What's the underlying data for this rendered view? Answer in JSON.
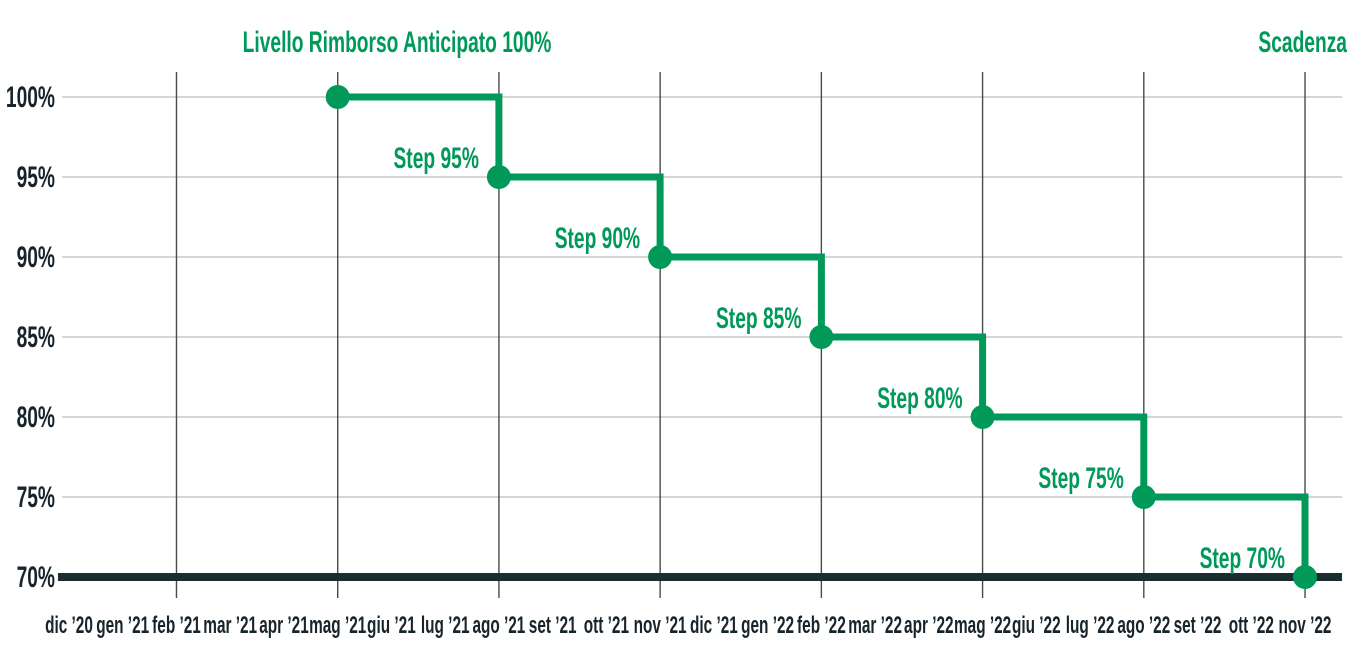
{
  "chart_data": {
    "type": "line",
    "line_style": "step-after",
    "title": "Livello Rimborso Anticipato 100%",
    "maturity_label": "Scadenza",
    "xlabel": "",
    "ylabel": "",
    "ylim": [
      70,
      100
    ],
    "grid": true,
    "legend_position": "none",
    "x_tick_labels": [
      "dic ’20",
      "gen ’21",
      "feb ’21",
      "mar ’21",
      "apr ’21",
      "mag ’21",
      "giu ’21",
      "lug ’21",
      "ago ’21",
      "set ’21",
      "ott ’21",
      "nov ’21",
      "dic ’21",
      "gen ’22",
      "feb ’22",
      "mar ’22",
      "apr ’22",
      "mag ’22",
      "giu ’22",
      "lug ’22",
      "ago ’22",
      "set ’22",
      "ott ’22",
      "nov ’22"
    ],
    "y_ticks": [
      {
        "value": 100,
        "label": "100%"
      },
      {
        "value": 95,
        "label": "95%"
      },
      {
        "value": 90,
        "label": "90%"
      },
      {
        "value": 85,
        "label": "85%"
      },
      {
        "value": 80,
        "label": "80%"
      },
      {
        "value": 75,
        "label": "75%"
      }
    ],
    "baseline": {
      "value": 70,
      "label": "70%"
    },
    "gridline_months": [
      "feb ’21",
      "mag ’21",
      "ago ’21",
      "nov ’21",
      "feb ’22",
      "mag ’22",
      "ago ’22",
      "nov ’22"
    ],
    "points": [
      {
        "month": "mag ’21",
        "value": 100
      },
      {
        "month": "ago ’21",
        "value": 95,
        "step_label": "Step 95%"
      },
      {
        "month": "nov ’21",
        "value": 90,
        "step_label": "Step 90%"
      },
      {
        "month": "feb ’22",
        "value": 85,
        "step_label": "Step 85%"
      },
      {
        "month": "mag ’22",
        "value": 80,
        "step_label": "Step 80%"
      },
      {
        "month": "ago ’22",
        "value": 75,
        "step_label": "Step 75%"
      },
      {
        "month": "nov ’22",
        "value": 70,
        "step_label": "Step 70%"
      }
    ],
    "colors": {
      "accent_green": "#009959",
      "baseline_dark": "#1b2c33",
      "axis_text": "#18242b",
      "h_gridline": "#c9c9c9",
      "v_gridline": "#4a4a4a"
    }
  }
}
